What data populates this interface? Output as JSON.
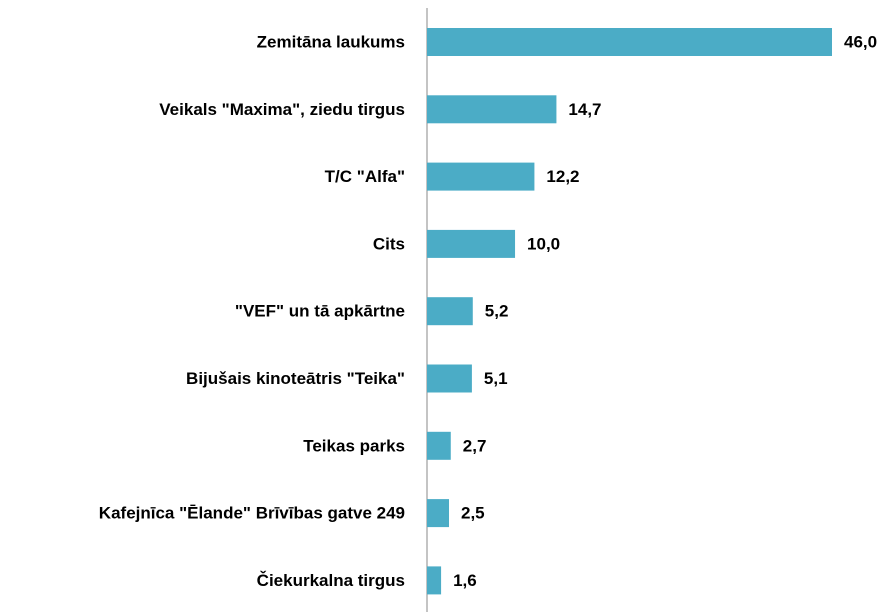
{
  "chart_data": {
    "type": "bar",
    "orientation": "horizontal",
    "categories": [
      "Zemitāna laukums",
      "Veikals \"Maxima\", ziedu tirgus",
      "T/C \"Alfa\"",
      "Cits",
      "\"VEF\" un tā apkārtne",
      "Bijušais kinoteātris \"Teika\"",
      "Teikas parks",
      "Kafejnīca \"Ēlande\" Brīvības gatve 249",
      "Čiekurkalna tirgus"
    ],
    "values": [
      46.0,
      14.7,
      12.2,
      10.0,
      5.2,
      5.1,
      2.7,
      2.5,
      1.6
    ],
    "value_labels": [
      "46,0",
      "14,7",
      "12,2",
      "10,0",
      "5,2",
      "5,1",
      "2,7",
      "2,5",
      "1,6"
    ],
    "color": "#4bacc6"
  }
}
